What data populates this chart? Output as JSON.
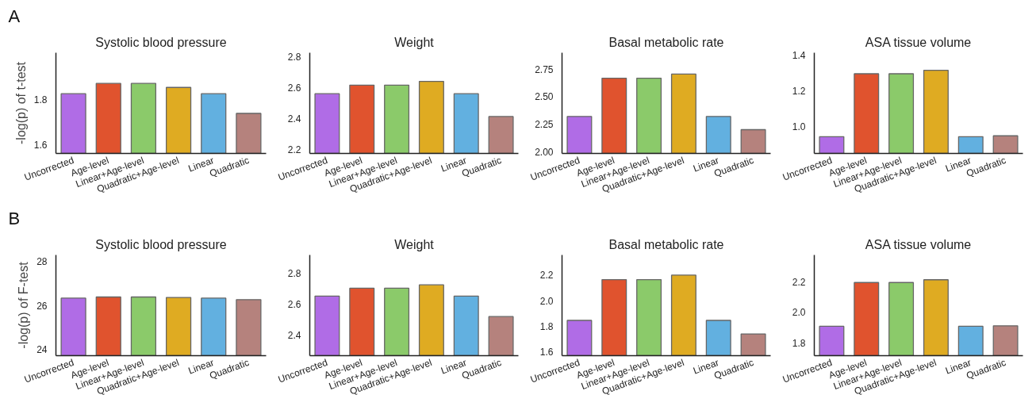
{
  "chart_data": [
    {
      "type": "bar",
      "title": "Systolic blood pressure",
      "ylabel": "-log(p) of t-test",
      "annotations": [
        "A"
      ],
      "categories": [
        "Uncorrected",
        "Age-level",
        "Linear+Age-level",
        "Quadratic+Age-level",
        "Linear",
        "Quadratic"
      ],
      "values": [
        1.827,
        1.873,
        1.873,
        1.855,
        1.827,
        1.739
      ],
      "colors": [
        "#b06ce6",
        "#e0532e",
        "#8bca6a",
        "#dfab22",
        "#62b0e0",
        "#b5827d"
      ],
      "ylim": [
        1.56,
        2.01
      ],
      "yticks": [
        1.6,
        1.8
      ],
      "grid": false
    },
    {
      "type": "bar",
      "title": "Weight",
      "categories": [
        "Uncorrected",
        "Age-level",
        "Linear+Age-level",
        "Quadratic+Age-level",
        "Linear",
        "Quadratic"
      ],
      "values": [
        2.56,
        2.616,
        2.616,
        2.64,
        2.56,
        2.412
      ],
      "colors": [
        "#b06ce6",
        "#e0532e",
        "#8bca6a",
        "#dfab22",
        "#62b0e0",
        "#b5827d"
      ],
      "ylim": [
        2.172,
        2.826
      ],
      "yticks": [
        2.2,
        2.4,
        2.6,
        2.8
      ],
      "grid": false
    },
    {
      "type": "bar",
      "title": "Basal metabolic rate",
      "categories": [
        "Uncorrected",
        "Age-level",
        "Linear+Age-level",
        "Quadratic+Age-level",
        "Linear",
        "Quadratic"
      ],
      "values": [
        2.32,
        2.667,
        2.667,
        2.704,
        2.32,
        2.2
      ],
      "colors": [
        "#b06ce6",
        "#e0532e",
        "#8bca6a",
        "#dfab22",
        "#62b0e0",
        "#b5827d"
      ],
      "ylim": [
        1.984,
        2.898
      ],
      "yticks": [
        {
          "value": 2,
          "label": "2.00"
        },
        2.25,
        {
          "value": 2.5,
          "label": "2.50"
        },
        2.75
      ],
      "grid": false
    },
    {
      "type": "bar",
      "title": "ASA tissue volume",
      "categories": [
        "Uncorrected",
        "Age-level",
        "Linear+Age-level",
        "Quadratic+Age-level",
        "Linear",
        "Quadratic"
      ],
      "values": [
        0.942,
        1.295,
        1.295,
        1.315,
        0.942,
        0.947
      ],
      "colors": [
        "#b06ce6",
        "#e0532e",
        "#8bca6a",
        "#dfab22",
        "#62b0e0",
        "#b5827d"
      ],
      "ylim": [
        0.848,
        1.413
      ],
      "yticks": [
        {
          "value": 1,
          "label": "1.0"
        },
        1.2,
        1.4
      ],
      "grid": false
    },
    {
      "type": "bar",
      "title": "Systolic blood pressure",
      "ylabel": "-log(p) of F-test",
      "annotations": [
        "B"
      ],
      "categories": [
        "Uncorrected",
        "Age-level",
        "Linear+Age-level",
        "Quadratic+Age-level",
        "Linear",
        "Quadratic"
      ],
      "values": [
        26.33,
        26.38,
        26.38,
        26.36,
        26.33,
        26.26
      ],
      "colors": [
        "#b06ce6",
        "#e0532e",
        "#8bca6a",
        "#dfab22",
        "#62b0e0",
        "#b5827d"
      ],
      "ylim": [
        23.7,
        28.3
      ],
      "yticks": [
        24,
        26,
        28
      ],
      "grid": false
    },
    {
      "type": "bar",
      "title": "Weight",
      "categories": [
        "Uncorrected",
        "Age-level",
        "Linear+Age-level",
        "Quadratic+Age-level",
        "Linear",
        "Quadratic"
      ],
      "values": [
        2.651,
        2.702,
        2.702,
        2.724,
        2.651,
        2.518
      ],
      "colors": [
        "#b06ce6",
        "#e0532e",
        "#8bca6a",
        "#dfab22",
        "#62b0e0",
        "#b5827d"
      ],
      "ylim": [
        2.264,
        2.918
      ],
      "yticks": [
        2.4,
        2.6,
        2.8
      ],
      "grid": false
    },
    {
      "type": "bar",
      "title": "Basal metabolic rate",
      "categories": [
        "Uncorrected",
        "Age-level",
        "Linear+Age-level",
        "Quadratic+Age-level",
        "Linear",
        "Quadratic"
      ],
      "values": [
        1.846,
        2.165,
        2.165,
        2.2,
        1.846,
        1.74
      ],
      "colors": [
        "#b06ce6",
        "#e0532e",
        "#8bca6a",
        "#dfab22",
        "#62b0e0",
        "#b5827d"
      ],
      "ylim": [
        1.57,
        2.358
      ],
      "yticks": [
        1.6,
        1.8,
        {
          "value": 2,
          "label": "2.0"
        },
        2.2
      ],
      "grid": false
    },
    {
      "type": "bar",
      "title": "ASA tissue volume",
      "categories": [
        "Uncorrected",
        "Age-level",
        "Linear+Age-level",
        "Quadratic+Age-level",
        "Linear",
        "Quadratic"
      ],
      "values": [
        1.91,
        2.194,
        2.194,
        2.212,
        1.91,
        1.913
      ],
      "colors": [
        "#b06ce6",
        "#e0532e",
        "#8bca6a",
        "#dfab22",
        "#62b0e0",
        "#b5827d"
      ],
      "ylim": [
        1.719,
        2.373
      ],
      "yticks": [
        1.8,
        {
          "value": 2,
          "label": "2.0"
        },
        2.2
      ],
      "grid": false
    }
  ]
}
